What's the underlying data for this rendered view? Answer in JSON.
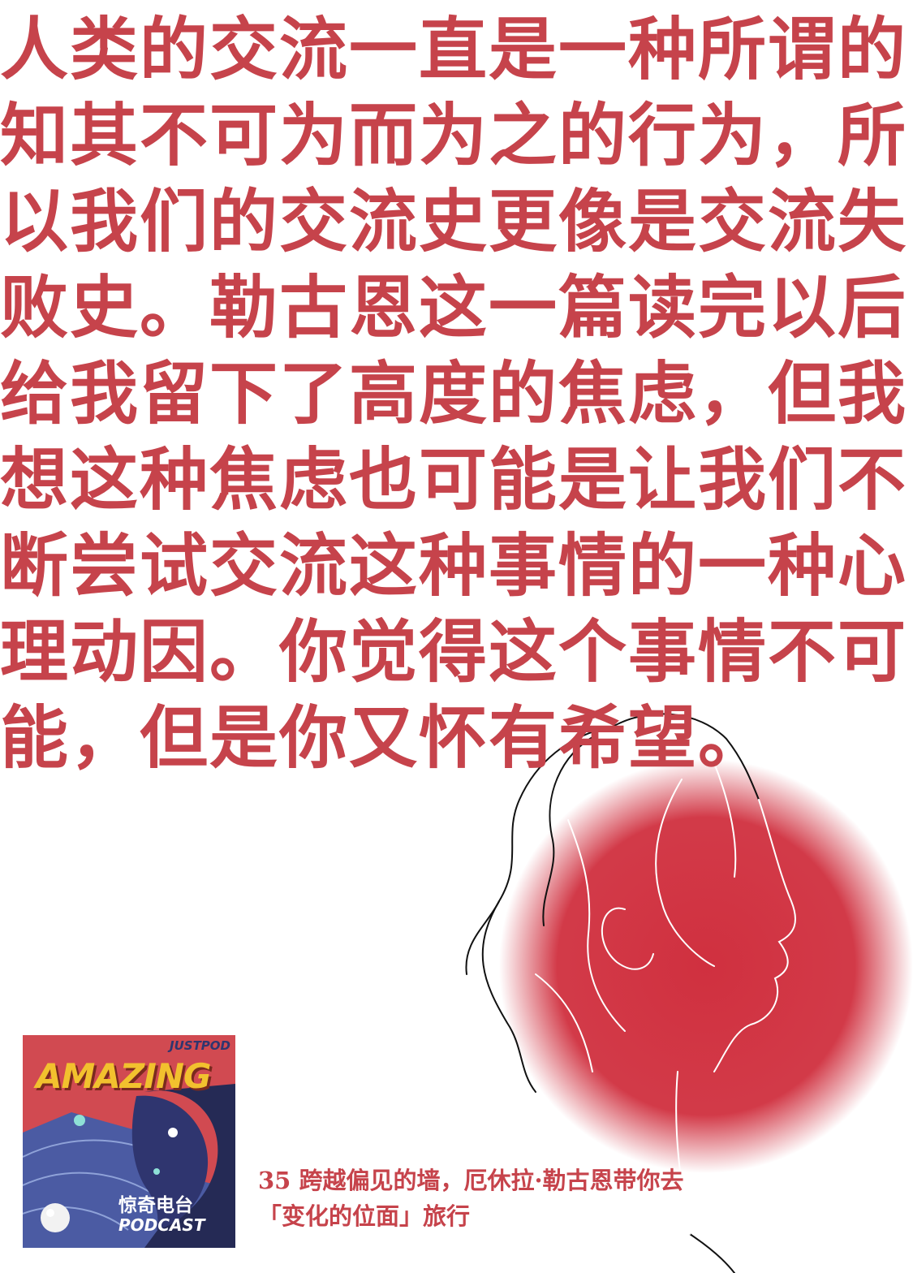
{
  "quote": {
    "lines": [
      "人类的交流一直是一种所谓的",
      "知其不可为而为之的行为，所",
      "以我们的交流史更像是交流失",
      "败史。勒古恩这一篇读完以后",
      "给我留下了高度的焦虑，但我",
      "想这种焦虑也可能是让我们不",
      "断尝试交流这种事情的一种心",
      "理动因。你觉得这个事情不可",
      "能，但是你又怀有希望。"
    ]
  },
  "podcast_cover": {
    "network": "JUSTPOD",
    "show_title": "AMAZING",
    "show_title_cn": "惊奇电台",
    "show_subtitle": "PODCAST"
  },
  "episode": {
    "line1": "35  跨越偏见的墙，厄休拉·勒古恩带你去",
    "line2": "「变化的位面」旅行"
  },
  "colors": {
    "accent": "#c6434b",
    "circle": "#d0303f",
    "cover_bg": "#d14a51",
    "cover_navy": "#2f356f"
  }
}
